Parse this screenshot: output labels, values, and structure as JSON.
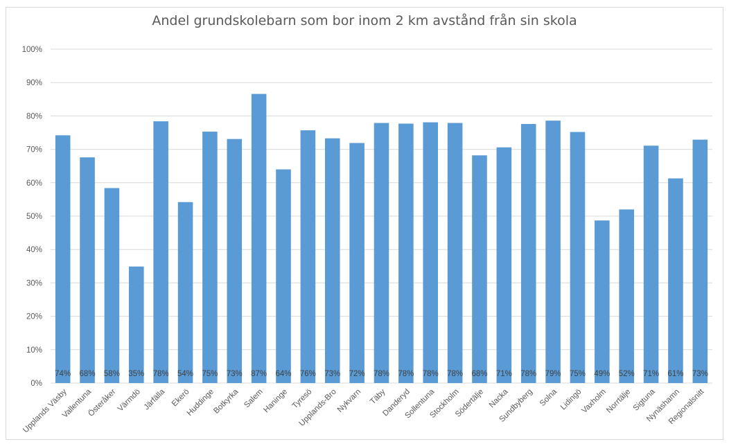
{
  "chart_data": {
    "type": "bar",
    "title": "Andel grundskolebarn som bor inom 2 km avstånd från sin skola",
    "xlabel": "",
    "ylabel": "",
    "ylim": [
      0,
      1
    ],
    "yticks": [
      "0%",
      "10%",
      "20%",
      "30%",
      "40%",
      "50%",
      "60%",
      "70%",
      "80%",
      "90%",
      "100%"
    ],
    "grid": true,
    "legend": "none",
    "bar_color": "#5b9bd5",
    "categories": [
      "Upplands Väsby",
      "Vallentuna",
      "Österåker",
      "Värmdö",
      "Järfälla",
      "Ekerö",
      "Huddinge",
      "Botkyrka",
      "Salem",
      "Haninge",
      "Tyresö",
      "Upplands-Bro",
      "Nykvarn",
      "Täby",
      "Danderyd",
      "Sollentuna",
      "Stockholm",
      "Södertälje",
      "Nacka",
      "Sundbyberg",
      "Solna",
      "Lidingö",
      "Vaxholm",
      "Norrtälje",
      "Sigtuna",
      "Nynäshamn",
      "Regionalsnitt"
    ],
    "values": [
      0.742,
      0.676,
      0.584,
      0.349,
      0.784,
      0.542,
      0.753,
      0.731,
      0.866,
      0.64,
      0.757,
      0.733,
      0.719,
      0.779,
      0.777,
      0.781,
      0.779,
      0.682,
      0.706,
      0.776,
      0.786,
      0.752,
      0.487,
      0.52,
      0.711,
      0.613,
      0.729
    ],
    "data_labels": [
      "74%",
      "68%",
      "58%",
      "35%",
      "78%",
      "54%",
      "75%",
      "73%",
      "87%",
      "64%",
      "76%",
      "73%",
      "72%",
      "78%",
      "78%",
      "78%",
      "78%",
      "68%",
      "71%",
      "78%",
      "79%",
      "75%",
      "49%",
      "52%",
      "71%",
      "61%",
      "73%"
    ]
  }
}
